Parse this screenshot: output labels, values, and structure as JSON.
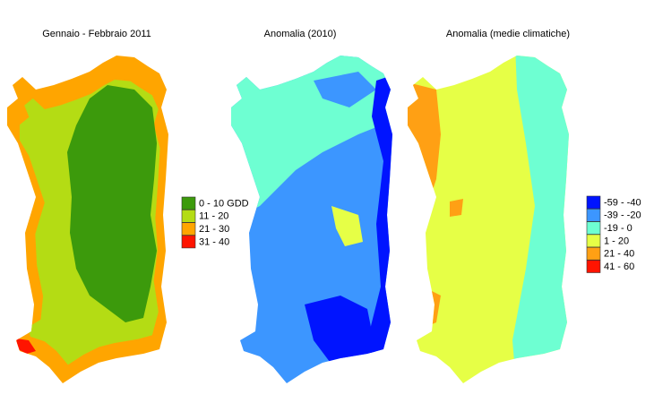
{
  "panels": [
    {
      "title": "Gennaio - Febbraio 2011"
    },
    {
      "title": "Anomalia (2010)"
    },
    {
      "title": "Anomalia (medie climatiche)"
    }
  ],
  "legends": [
    {
      "items": [
        {
          "label": "0 - 10 GDD",
          "color": "#3c9a0c"
        },
        {
          "label": "11 - 20",
          "color": "#b4dc14"
        },
        {
          "label": "21 - 30",
          "color": "#ffa500"
        },
        {
          "label": "31 - 40",
          "color": "#ff1400"
        }
      ]
    },
    {
      "items": [
        {
          "label": "-59 - -40",
          "color": "#0014ff"
        },
        {
          "label": "-39 - -20",
          "color": "#3c96ff"
        },
        {
          "label": "-19 - 0",
          "color": "#6effd2"
        },
        {
          "label": "1 - 20",
          "color": "#e6ff46"
        },
        {
          "label": "21 - 40",
          "color": "#ffa014"
        },
        {
          "label": "41 - 60",
          "color": "#ff1400"
        }
      ]
    }
  ]
}
